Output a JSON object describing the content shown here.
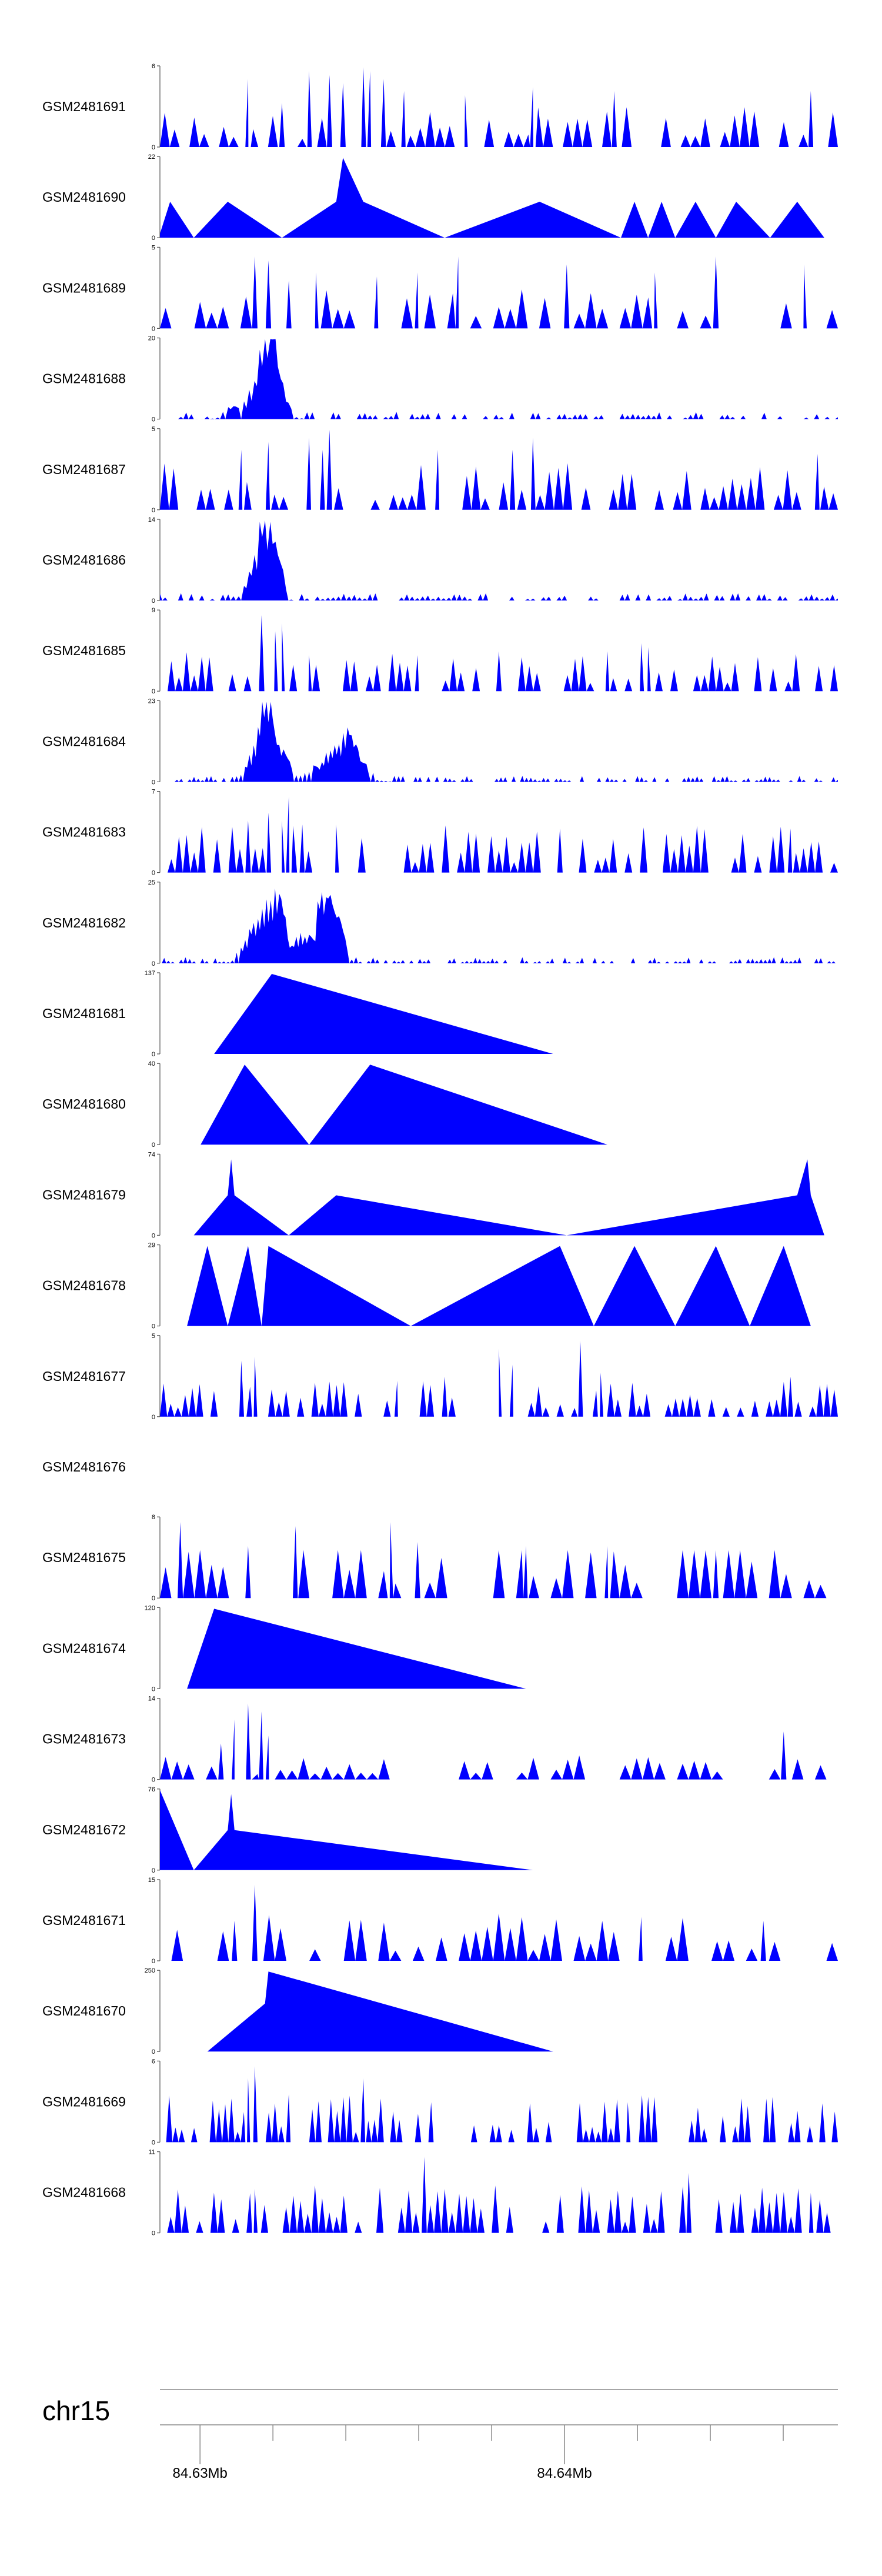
{
  "chart_data": {
    "type": "area",
    "title": "",
    "color": "#0000ff",
    "axis_color": "#555555",
    "region": {
      "chromosome": "chr15",
      "start": 84.6259,
      "end": 84.6445
    },
    "scale": {
      "label": "chr15",
      "ticks": [
        {
          "pos": 84.627,
          "label": "84.63Mb"
        },
        {
          "pos": 84.629,
          "label": ""
        },
        {
          "pos": 84.631,
          "label": ""
        },
        {
          "pos": 84.633,
          "label": ""
        },
        {
          "pos": 84.635,
          "label": ""
        },
        {
          "pos": 84.637,
          "label": "84.64Mb"
        },
        {
          "pos": 84.639,
          "label": ""
        },
        {
          "pos": 84.641,
          "label": ""
        },
        {
          "pos": 84.643,
          "label": ""
        }
      ]
    },
    "tracks": [
      {
        "name": "GSM2481691",
        "ymin_label": "0",
        "ymax_label": "6",
        "ymax": 6,
        "style": "noise",
        "n": 70,
        "base": 0.25,
        "spikes": [
          [
            0.13,
            0.85
          ],
          [
            0.18,
            0.55
          ],
          [
            0.22,
            0.95
          ],
          [
            0.25,
            0.9
          ],
          [
            0.27,
            0.8
          ],
          [
            0.3,
            1.0
          ],
          [
            0.31,
            0.95
          ],
          [
            0.33,
            0.85
          ],
          [
            0.36,
            0.7
          ],
          [
            0.45,
            0.65
          ],
          [
            0.55,
            0.75
          ],
          [
            0.67,
            0.7
          ],
          [
            0.96,
            0.7
          ]
        ]
      },
      {
        "name": "GSM2481690",
        "ymin_label": "0",
        "ymax_label": "22",
        "ymax": 22,
        "style": "sparse",
        "start": 0.0,
        "end": 1.0,
        "points": [
          [
            0.0,
            0.05
          ],
          [
            0.015,
            0.45
          ],
          [
            0.05,
            0
          ],
          [
            0.1,
            0.45
          ],
          [
            0.18,
            0
          ],
          [
            0.26,
            0.45
          ],
          [
            0.27,
            1.0
          ],
          [
            0.3,
            0.45
          ],
          [
            0.42,
            0
          ],
          [
            0.56,
            0.45
          ],
          [
            0.68,
            0
          ],
          [
            0.7,
            0.45
          ],
          [
            0.72,
            0
          ],
          [
            0.74,
            0.45
          ],
          [
            0.76,
            0
          ],
          [
            0.79,
            0.45
          ],
          [
            0.82,
            0
          ],
          [
            0.85,
            0.45
          ],
          [
            0.9,
            0
          ],
          [
            0.94,
            0.45
          ],
          [
            0.98,
            0
          ]
        ]
      },
      {
        "name": "GSM2481689",
        "ymin_label": "0",
        "ymax_label": "5",
        "ymax": 5,
        "style": "noise",
        "n": 60,
        "base": 0.25,
        "spikes": [
          [
            0.14,
            0.9
          ],
          [
            0.16,
            0.85
          ],
          [
            0.19,
            0.6
          ],
          [
            0.23,
            0.7
          ],
          [
            0.32,
            0.65
          ],
          [
            0.38,
            0.7
          ],
          [
            0.44,
            0.9
          ],
          [
            0.6,
            0.8
          ],
          [
            0.73,
            0.7
          ],
          [
            0.82,
            0.9
          ],
          [
            0.95,
            0.8
          ]
        ]
      },
      {
        "name": "GSM2481688",
        "ymin_label": "0",
        "ymax_label": "20",
        "ymax": 20,
        "style": "peak",
        "n": 130,
        "base": 0.06,
        "peaks": [
          [
            0.145,
            0.035,
            0.35
          ],
          [
            0.155,
            0.012,
            0.95
          ],
          [
            0.17,
            0.012,
            0.85
          ]
        ]
      },
      {
        "name": "GSM2481687",
        "ymin_label": "0",
        "ymax_label": "5",
        "ymax": 5,
        "style": "noise",
        "n": 75,
        "base": 0.3,
        "spikes": [
          [
            0.12,
            0.75
          ],
          [
            0.16,
            0.85
          ],
          [
            0.22,
            0.9
          ],
          [
            0.24,
            0.75
          ],
          [
            0.25,
            1.0
          ],
          [
            0.41,
            0.75
          ],
          [
            0.52,
            0.75
          ],
          [
            0.55,
            0.9
          ],
          [
            0.97,
            0.7
          ]
        ]
      },
      {
        "name": "GSM2481686",
        "ymin_label": "0",
        "ymax_label": "14",
        "ymax": 14,
        "style": "peak",
        "n": 130,
        "base": 0.06,
        "peaks": [
          [
            0.14,
            0.015,
            0.45
          ],
          [
            0.152,
            0.01,
            0.8
          ],
          [
            0.162,
            0.01,
            0.95
          ],
          [
            0.175,
            0.01,
            0.4
          ]
        ]
      },
      {
        "name": "GSM2481685",
        "ymin_label": "0",
        "ymax_label": "9",
        "ymax": 9,
        "style": "noise",
        "n": 90,
        "base": 0.25,
        "spikes": [
          [
            0.15,
            0.95
          ],
          [
            0.17,
            0.75
          ],
          [
            0.18,
            0.85
          ],
          [
            0.22,
            0.45
          ],
          [
            0.38,
            0.45
          ],
          [
            0.5,
            0.5
          ],
          [
            0.66,
            0.5
          ],
          [
            0.71,
            0.6
          ],
          [
            0.72,
            0.55
          ]
        ]
      },
      {
        "name": "GSM2481684",
        "ymin_label": "0",
        "ymax_label": "23",
        "ymax": 23,
        "style": "peak",
        "n": 160,
        "base": 0.05,
        "peaks": [
          [
            0.145,
            0.018,
            0.5
          ],
          [
            0.155,
            0.008,
            0.95
          ],
          [
            0.17,
            0.02,
            0.65
          ],
          [
            0.26,
            0.04,
            0.35
          ],
          [
            0.28,
            0.015,
            0.5
          ]
        ]
      },
      {
        "name": "GSM2481683",
        "ymin_label": "0",
        "ymax_label": "7",
        "ymax": 7,
        "style": "noise",
        "n": 90,
        "base": 0.3,
        "spikes": [
          [
            0.13,
            0.65
          ],
          [
            0.16,
            0.75
          ],
          [
            0.18,
            0.65
          ],
          [
            0.19,
            0.95
          ],
          [
            0.21,
            0.6
          ],
          [
            0.26,
            0.6
          ],
          [
            0.59,
            0.55
          ],
          [
            0.93,
            0.55
          ]
        ]
      },
      {
        "name": "GSM2481682",
        "ymin_label": "0",
        "ymax_label": "25",
        "ymax": 25,
        "style": "peak",
        "n": 160,
        "base": 0.05,
        "peaks": [
          [
            0.15,
            0.025,
            0.75
          ],
          [
            0.175,
            0.012,
            0.8
          ],
          [
            0.21,
            0.015,
            0.45
          ],
          [
            0.24,
            0.012,
            0.95
          ],
          [
            0.26,
            0.015,
            0.65
          ]
        ]
      },
      {
        "name": "GSM2481681",
        "ymin_label": "0",
        "ymax_label": "137",
        "ymax": 137,
        "style": "sparse",
        "start": 0.0,
        "end": 1.0,
        "points": [
          [
            0.08,
            0
          ],
          [
            0.165,
            1.0
          ],
          [
            0.58,
            0
          ]
        ]
      },
      {
        "name": "GSM2481680",
        "ymin_label": "0",
        "ymax_label": "40",
        "ymax": 40,
        "style": "sparse",
        "start": 0.0,
        "end": 1.0,
        "points": [
          [
            0.06,
            0
          ],
          [
            0.125,
            1.0
          ],
          [
            0.22,
            0
          ],
          [
            0.31,
            1.0
          ],
          [
            0.66,
            0
          ]
        ]
      },
      {
        "name": "GSM2481679",
        "ymin_label": "0",
        "ymax_label": "74",
        "ymax": 74,
        "style": "sparse",
        "start": 0.0,
        "end": 1.0,
        "points": [
          [
            0.05,
            0
          ],
          [
            0.1,
            0.5
          ],
          [
            0.105,
            0.95
          ],
          [
            0.11,
            0.5
          ],
          [
            0.19,
            0
          ],
          [
            0.26,
            0.5
          ],
          [
            0.6,
            0
          ],
          [
            0.94,
            0.5
          ],
          [
            0.955,
            0.95
          ],
          [
            0.96,
            0.5
          ],
          [
            0.98,
            0
          ]
        ]
      },
      {
        "name": "GSM2481678",
        "ymin_label": "0",
        "ymax_label": "29",
        "ymax": 29,
        "style": "sparse",
        "start": 0.0,
        "end": 1.0,
        "points": [
          [
            0.04,
            0
          ],
          [
            0.07,
            1.0
          ],
          [
            0.1,
            0
          ],
          [
            0.13,
            1.0
          ],
          [
            0.15,
            0
          ],
          [
            0.16,
            1.0
          ],
          [
            0.37,
            0
          ],
          [
            0.59,
            1.0
          ],
          [
            0.64,
            0
          ],
          [
            0.7,
            1.0
          ],
          [
            0.76,
            0
          ],
          [
            0.82,
            1.0
          ],
          [
            0.87,
            0
          ],
          [
            0.92,
            1.0
          ],
          [
            0.96,
            0
          ]
        ]
      },
      {
        "name": "GSM2481677",
        "ymin_label": "0",
        "ymax_label": "5",
        "ymax": 5,
        "style": "noise",
        "n": 95,
        "base": 0.25,
        "spikes": [
          [
            0.12,
            0.7
          ],
          [
            0.14,
            0.75
          ],
          [
            0.35,
            0.45
          ],
          [
            0.42,
            0.5
          ],
          [
            0.5,
            0.85
          ],
          [
            0.52,
            0.65
          ],
          [
            0.62,
            0.95
          ],
          [
            0.65,
            0.55
          ],
          [
            0.93,
            0.5
          ]
        ]
      },
      {
        "name": "GSM2481676",
        "ymin_label": "",
        "ymax_label": "",
        "ymax": 0,
        "style": "empty"
      },
      {
        "name": "GSM2481675",
        "ymin_label": "0",
        "ymax_label": "8",
        "ymax": 8,
        "style": "noise",
        "n": 60,
        "base": 0.4,
        "spikes": [
          [
            0.03,
            0.95
          ],
          [
            0.13,
            0.65
          ],
          [
            0.2,
            0.9
          ],
          [
            0.34,
            0.95
          ],
          [
            0.38,
            0.7
          ],
          [
            0.54,
            0.65
          ],
          [
            0.66,
            0.65
          ],
          [
            0.82,
            0.6
          ]
        ]
      },
      {
        "name": "GSM2481674",
        "ymin_label": "0",
        "ymax_label": "120",
        "ymax": 120,
        "style": "sparse",
        "start": 0.0,
        "end": 1.0,
        "points": [
          [
            0.04,
            0
          ],
          [
            0.08,
            1.0
          ],
          [
            0.54,
            0
          ]
        ]
      },
      {
        "name": "GSM2481673",
        "ymin_label": "0",
        "ymax_label": "14",
        "ymax": 14,
        "style": "noise",
        "n": 60,
        "base": 0.15,
        "spikes": [
          [
            0.09,
            0.45
          ],
          [
            0.11,
            0.75
          ],
          [
            0.13,
            0.95
          ],
          [
            0.15,
            0.85
          ],
          [
            0.16,
            0.55
          ],
          [
            0.92,
            0.6
          ]
        ]
      },
      {
        "name": "GSM2481672",
        "ymin_label": "0",
        "ymax_label": "76",
        "ymax": 76,
        "style": "sparse",
        "start": 0.0,
        "end": 1.0,
        "points": [
          [
            0.0,
            1.0
          ],
          [
            0.05,
            0
          ],
          [
            0.1,
            0.5
          ],
          [
            0.105,
            0.95
          ],
          [
            0.11,
            0.5
          ],
          [
            0.55,
            0
          ]
        ]
      },
      {
        "name": "GSM2481671",
        "ymin_label": "0",
        "ymax_label": "15",
        "ymax": 15,
        "style": "noise",
        "n": 60,
        "base": 0.3,
        "spikes": [
          [
            0.11,
            0.5
          ],
          [
            0.14,
            0.95
          ],
          [
            0.71,
            0.55
          ],
          [
            0.89,
            0.5
          ]
        ]
      },
      {
        "name": "GSM2481670",
        "ymin_label": "0",
        "ymax_label": "250",
        "ymax": 250,
        "style": "sparse",
        "start": 0.0,
        "end": 1.0,
        "points": [
          [
            0.07,
            0
          ],
          [
            0.155,
            0.6
          ],
          [
            0.16,
            1.0
          ],
          [
            0.58,
            0
          ]
        ]
      },
      {
        "name": "GSM2481669",
        "ymin_label": "0",
        "ymax_label": "6",
        "ymax": 6,
        "style": "noise",
        "n": 110,
        "base": 0.3,
        "spikes": [
          [
            0.13,
            0.8
          ],
          [
            0.14,
            0.95
          ],
          [
            0.19,
            0.6
          ],
          [
            0.3,
            0.8
          ],
          [
            0.4,
            0.5
          ],
          [
            0.69,
            0.5
          ]
        ]
      },
      {
        "name": "GSM2481668",
        "ymin_label": "0",
        "ymax_label": "11",
        "ymax": 11,
        "style": "noise",
        "n": 95,
        "base": 0.3,
        "spikes": [
          [
            0.14,
            0.55
          ],
          [
            0.39,
            0.95
          ],
          [
            0.78,
            0.75
          ],
          [
            0.96,
            0.5
          ]
        ]
      }
    ]
  }
}
